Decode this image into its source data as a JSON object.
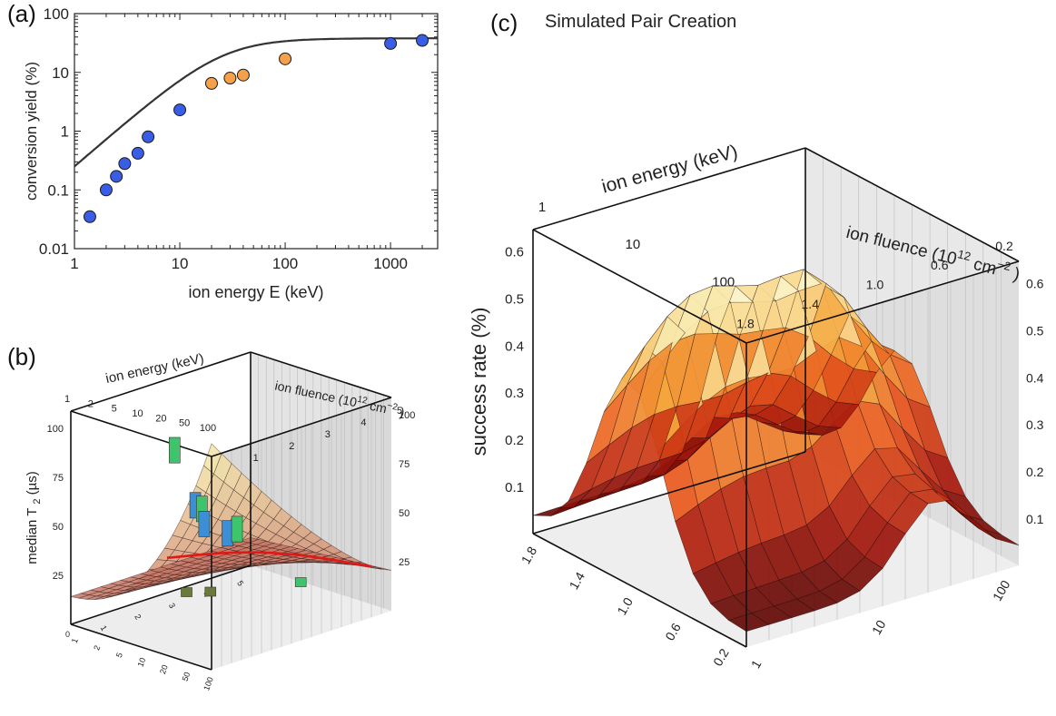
{
  "panels": {
    "a": {
      "label": "(a)"
    },
    "b": {
      "label": "(b)"
    },
    "c": {
      "label": "(c)",
      "title": "Simulated Pair Creation"
    }
  },
  "chart_data": [
    {
      "id": "a",
      "type": "scatter",
      "xlabel": "ion energy E (keV)",
      "ylabel": "conversion yield (%)",
      "xscale": "log",
      "yscale": "log",
      "xlim": [
        1,
        2800
      ],
      "ylim": [
        0.01,
        100
      ],
      "xticks": [
        "1",
        "10",
        "100",
        "1000"
      ],
      "yticks": [
        "0.01",
        "0.1",
        "1",
        "10",
        "100"
      ],
      "grid": false,
      "series": [
        {
          "color": "#3a5de8",
          "points": [
            [
              1.4,
              0.035
            ],
            [
              2,
              0.1
            ],
            [
              2.5,
              0.17
            ],
            [
              3,
              0.28
            ],
            [
              4,
              0.42
            ],
            [
              5,
              0.8
            ],
            [
              10,
              2.3
            ],
            [
              1000,
              31
            ],
            [
              2000,
              35
            ]
          ]
        },
        {
          "color": "#f5a04a",
          "points": [
            [
              20,
              6.5
            ],
            [
              30,
              8
            ],
            [
              40,
              9
            ],
            [
              100,
              17
            ]
          ]
        }
      ],
      "fit_curve_color": "#333333"
    },
    {
      "id": "b",
      "type": "surface3d",
      "zlabel": "median T",
      "zlabel_sub": "2",
      "zlabel_unit": "(µs)",
      "xlabel": "ion energy (keV)",
      "ylabel_main": "ion fluence (10",
      "ylabel_sup": "12",
      "ylabel_unit": "cm",
      "ylabel_unit_sup": "−2",
      "ylabel_close": ")",
      "energy_ticks": [
        "1",
        "2",
        "5",
        "10",
        "20",
        "50",
        "100"
      ],
      "fluence_ticks": [
        "1",
        "2",
        "3",
        "4",
        "5"
      ],
      "zticks_left": [
        "25",
        "50",
        "75",
        "100"
      ],
      "zticks_right": [
        "25",
        "50",
        "75",
        "100"
      ],
      "floor_fluence_ticks": [
        "1",
        "2",
        "3",
        "4",
        "5"
      ],
      "floor_energy_ticks": [
        "1",
        "2",
        "5",
        "10",
        "20",
        "50",
        "100"
      ],
      "floor_zero": "0",
      "surface_colors": [
        "#c0645a",
        "#f6e7a8"
      ],
      "contour_color": "#e01818"
    },
    {
      "id": "c",
      "type": "surface3d",
      "zlabel": "success rate (%)",
      "xlabel": "ion energy (keV)",
      "ylabel_main": "ion fluence (10",
      "ylabel_sup": "12",
      "ylabel_unit": "cm",
      "ylabel_unit_sup": "−2",
      "ylabel_close": ")",
      "energy_ticks": [
        "1",
        "10",
        "100"
      ],
      "fluence_ticks": [
        "1.8",
        "1.4",
        "1.0",
        "0.6",
        "0.2"
      ],
      "zticks_left": [
        "0.1",
        "0.2",
        "0.3",
        "0.4",
        "0.5",
        "0.6"
      ],
      "zticks_right": [
        "0.1",
        "0.2",
        "0.3",
        "0.4",
        "0.5",
        "0.6"
      ],
      "floor_fluence_ticks": [
        "1.8",
        "1.4",
        "1.0",
        "0.6",
        "0.2"
      ],
      "floor_energy_ticks": [
        "1",
        "10",
        "100"
      ],
      "surface_colors": [
        "#4a0505",
        "#a8180c",
        "#e8541c",
        "#f4a53a",
        "#faf0b8",
        "#ffffff"
      ]
    }
  ]
}
